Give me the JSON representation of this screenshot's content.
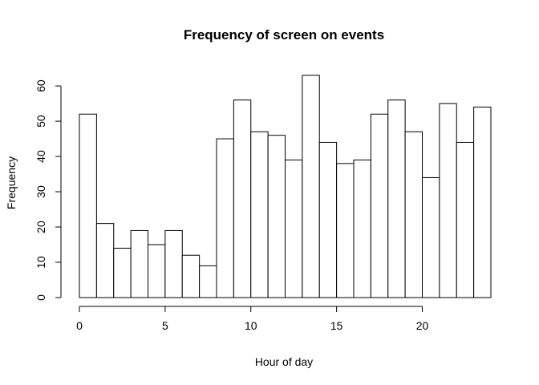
{
  "chart_data": {
    "type": "bar",
    "title": "Frequency of screen on events",
    "xlabel": "Hour of day",
    "ylabel": "Frequency",
    "bin_edges": [
      0,
      1,
      2,
      3,
      4,
      5,
      6,
      7,
      8,
      9,
      10,
      11,
      12,
      13,
      14,
      15,
      16,
      17,
      18,
      19,
      20,
      21,
      22,
      23,
      24
    ],
    "values": [
      52,
      21,
      14,
      19,
      15,
      19,
      12,
      9,
      45,
      56,
      47,
      46,
      39,
      63,
      44,
      38,
      39,
      52,
      56,
      47,
      34,
      55,
      44,
      54
    ],
    "xlim": [
      0,
      24
    ],
    "ylim": [
      0,
      64
    ],
    "x_ticks": [
      0,
      5,
      10,
      15,
      20
    ],
    "y_ticks": [
      0,
      10,
      20,
      30,
      40,
      50,
      60
    ],
    "grid": false,
    "colors": {
      "bar_fill": "#ffffff",
      "bar_stroke": "#000000"
    }
  }
}
